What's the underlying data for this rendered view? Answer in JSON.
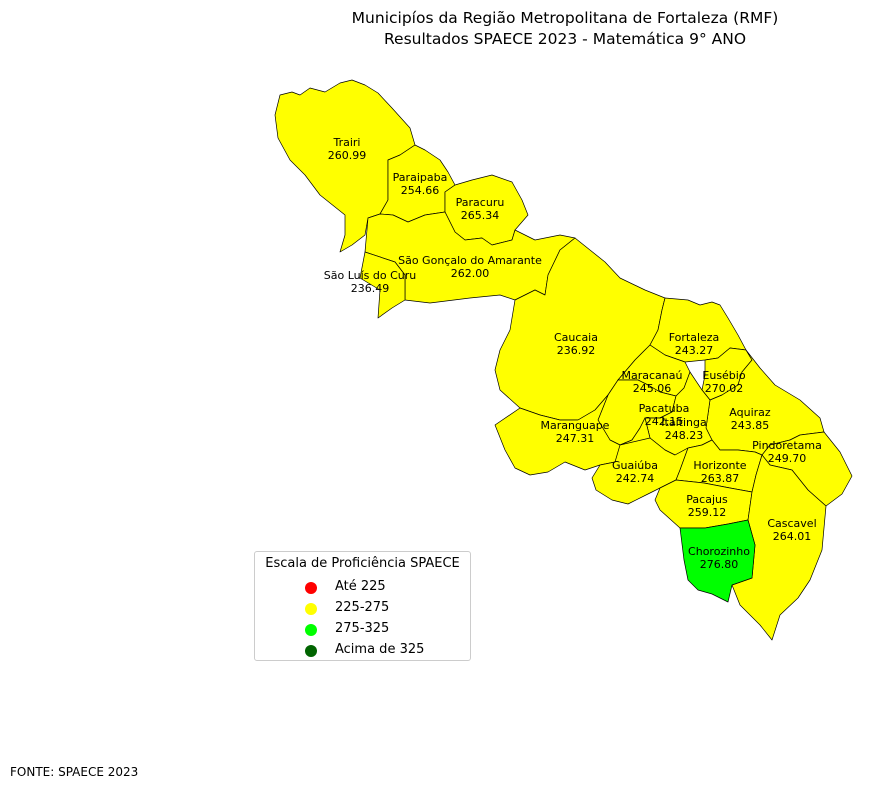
{
  "title": {
    "line1": "Municipíos da Região Metropolitana de Fortaleza (RMF)",
    "line2": "Resultados SPAECE 2023 - Matemática 9° ANO"
  },
  "colors": {
    "ate_225": "#ff0000",
    "225_275": "#ffff00",
    "275_325": "#00ff00",
    "acima_325": "#006400",
    "border": "#000000"
  },
  "municipios": [
    {
      "nome": "Trairi",
      "valor": "260.99",
      "faixa": "225_275"
    },
    {
      "nome": "Paraipaba",
      "valor": "254.66",
      "faixa": "225_275"
    },
    {
      "nome": "Paracuru",
      "valor": "265.34",
      "faixa": "225_275"
    },
    {
      "nome": "São Gonçalo do Amarante",
      "valor": "262.00",
      "faixa": "225_275"
    },
    {
      "nome": "São Luís do Curu",
      "valor": "236.49",
      "faixa": "225_275"
    },
    {
      "nome": "Caucaia",
      "valor": "236.92",
      "faixa": "225_275"
    },
    {
      "nome": "Fortaleza",
      "valor": "243.27",
      "faixa": "225_275"
    },
    {
      "nome": "Maracanaú",
      "valor": "245.06",
      "faixa": "225_275"
    },
    {
      "nome": "Eusébio",
      "valor": "270.02",
      "faixa": "225_275"
    },
    {
      "nome": "Pacatuba",
      "valor": "242.15",
      "faixa": "225_275"
    },
    {
      "nome": "Aquiraz",
      "valor": "243.85",
      "faixa": "225_275"
    },
    {
      "nome": "Itaitinga",
      "valor": "248.23",
      "faixa": "225_275"
    },
    {
      "nome": "Maranguape",
      "valor": "247.31",
      "faixa": "225_275"
    },
    {
      "nome": "Pindoretama",
      "valor": "249.70",
      "faixa": "225_275"
    },
    {
      "nome": "Guaiúba",
      "valor": "242.74",
      "faixa": "225_275"
    },
    {
      "nome": "Horizonte",
      "valor": "263.87",
      "faixa": "225_275"
    },
    {
      "nome": "Pacajus",
      "valor": "259.12",
      "faixa": "225_275"
    },
    {
      "nome": "Cascavel",
      "valor": "264.01",
      "faixa": "225_275"
    },
    {
      "nome": "Chorozinho",
      "valor": "276.80",
      "faixa": "275_325"
    }
  ],
  "legend": {
    "title": "Escala de Proficiência SPAECE",
    "items": [
      {
        "label": "Até 225",
        "color": "#ff0000"
      },
      {
        "label": "225-275",
        "color": "#ffff00"
      },
      {
        "label": "275-325",
        "color": "#00ff00"
      },
      {
        "label": "Acima de 325",
        "color": "#006400"
      }
    ]
  },
  "source": "FONTE: SPAECE 2023"
}
